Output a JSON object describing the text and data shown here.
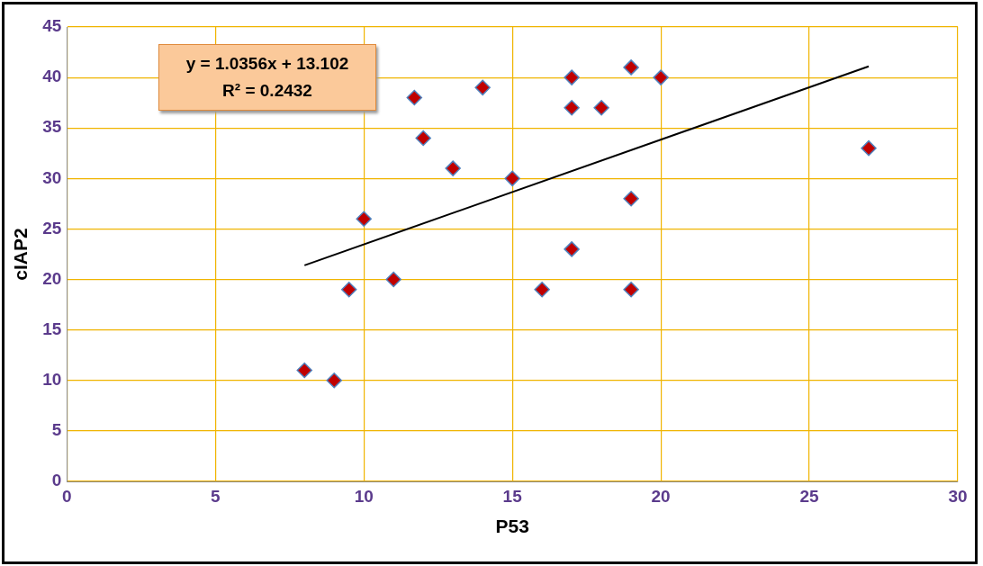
{
  "chart_data": {
    "type": "scatter",
    "xlabel": "P53",
    "ylabel": "cIAP2",
    "annotations": [
      "y = 1.0356x + 13.102",
      "R² = 0.2432"
    ],
    "xlim": [
      0,
      30
    ],
    "xticks": [
      0,
      5,
      10,
      15,
      20,
      25,
      30
    ],
    "ylim": [
      0,
      45
    ],
    "yticks": [
      0,
      5,
      10,
      15,
      20,
      25,
      30,
      35,
      40,
      45
    ],
    "grid": true,
    "legend": false,
    "marker": "diamond",
    "series": [
      {
        "color": "#c00000",
        "x": [
          8,
          9,
          9.5,
          10,
          11,
          11.7,
          12,
          13,
          14,
          15,
          16,
          17,
          17,
          17,
          18,
          19,
          19,
          19,
          20,
          27
        ],
        "values": [
          11,
          10,
          19,
          26,
          20,
          38,
          34,
          31,
          39,
          30,
          19,
          40,
          37,
          23,
          37,
          41,
          28,
          19,
          40,
          33
        ]
      },
      {
        "type": "line",
        "color": "#000000",
        "marker": "none",
        "line_style": "solid",
        "x": [
          8,
          27
        ],
        "values": [
          21.4,
          41.1
        ]
      }
    ]
  }
}
